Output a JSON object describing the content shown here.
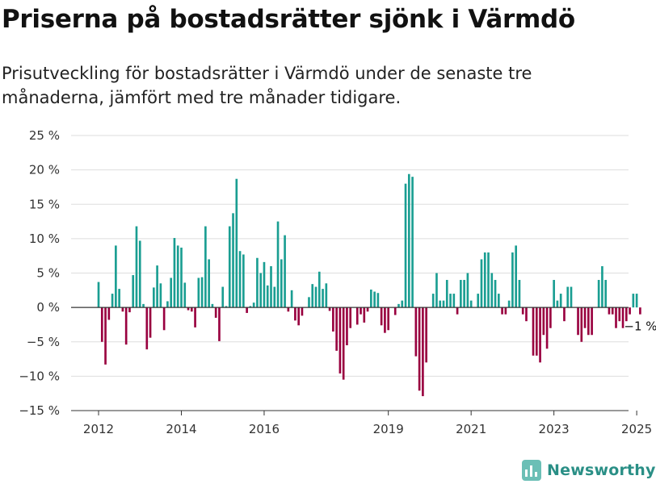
{
  "title": "Priserna på bostadsrätter sjönk i Värmdö",
  "subtitle": "Prisutveckling för bostadsrätter i Värmdö under de senaste tre månaderna, jämfört med tre månader tidigare.",
  "brand": "Newsworthy",
  "colors": {
    "positive": "#1a9e92",
    "negative": "#99003f",
    "grid": "#dddddd",
    "zero_line": "#333333"
  },
  "chart_data": {
    "type": "bar",
    "ylim": [
      -15,
      25
    ],
    "yticks": [
      -15,
      -10,
      -5,
      0,
      5,
      10,
      15,
      20,
      25
    ],
    "ytick_labels": [
      "−15 %",
      "−10 %",
      "−5 %",
      "0 %",
      "5 %",
      "10 %",
      "15 %",
      "20 %",
      "25 %"
    ],
    "xticks": [
      {
        "label": "2012",
        "value": 2012.0
      },
      {
        "label": "2014",
        "value": 2014.0
      },
      {
        "label": "2016",
        "value": 2016.0
      },
      {
        "label": "2019",
        "value": 2019.0
      },
      {
        "label": "2021",
        "value": 2021.0
      },
      {
        "label": "2023",
        "value": 2023.0
      },
      {
        "label": "2025",
        "value": 2025.0
      }
    ],
    "grid": true,
    "start_period": "2012-01",
    "period": "month",
    "values": [
      3.7,
      -5.0,
      -8.3,
      -1.8,
      2.0,
      9.0,
      2.7,
      -0.6,
      -5.4,
      -0.7,
      4.7,
      11.8,
      9.7,
      0.5,
      -6.1,
      -4.4,
      2.9,
      6.1,
      3.5,
      -3.3,
      0.9,
      4.3,
      10.1,
      9.0,
      8.7,
      3.6,
      -0.4,
      -0.6,
      -2.9,
      4.3,
      4.4,
      11.8,
      7.0,
      0.5,
      -1.5,
      -4.9,
      3.0,
      0.2,
      11.8,
      13.7,
      18.7,
      8.2,
      7.7,
      -0.8,
      0.2,
      0.7,
      7.2,
      5.0,
      6.6,
      3.2,
      6.0,
      3.0,
      12.5,
      7.0,
      10.5,
      -0.6,
      2.5,
      -1.9,
      -2.6,
      -1.2,
      0.0,
      1.5,
      3.4,
      3.0,
      5.2,
      2.7,
      3.5,
      -0.5,
      -3.5,
      -6.3,
      -9.6,
      -10.5,
      -5.5,
      -3.0,
      0.0,
      -2.5,
      -1.0,
      -2.2,
      -0.6,
      2.6,
      2.3,
      2.1,
      -2.6,
      -3.7,
      -3.3,
      0.0,
      -1.1,
      0.5,
      1.0,
      18.0,
      19.4,
      19.0,
      -7.1,
      -12.1,
      -12.9,
      -8.0,
      0.0,
      2.0,
      5.0,
      1.0,
      1.0,
      4.0,
      2.0,
      2.0,
      -1.0,
      4.0,
      4.0,
      5.0,
      1.0,
      0.0,
      2.0,
      7.0,
      8.0,
      8.0,
      5.0,
      4.0,
      2.0,
      -1.0,
      -1.0,
      1.0,
      8.0,
      9.0,
      4.0,
      -1.0,
      -2.0,
      0.0,
      -7.0,
      -7.0,
      -8.0,
      -4.0,
      -6.0,
      -3.0,
      4.0,
      1.0,
      2.0,
      -2.0,
      3.0,
      3.0,
      0.0,
      -4.0,
      -5.0,
      -3.0,
      -4.0,
      -4.0,
      0.0,
      4.0,
      6.0,
      4.0,
      -1.0,
      -1.0,
      -3.0,
      -2.0,
      -3.0,
      -2.0,
      -1.0,
      2.0,
      2.0,
      -1.0
    ],
    "end_label": "−1 %"
  }
}
